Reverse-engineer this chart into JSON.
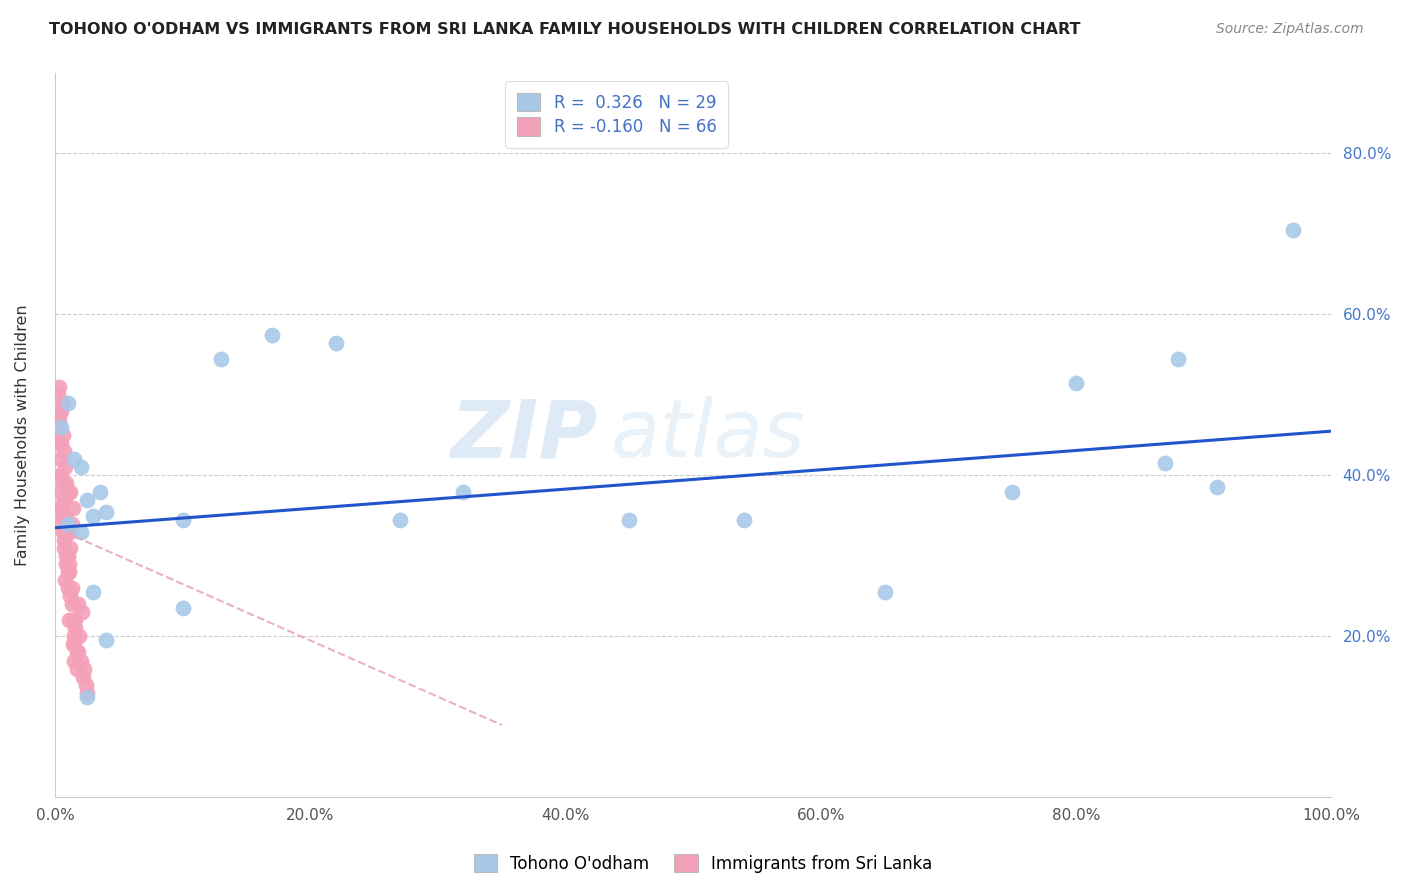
{
  "title": "TOHONO O'ODHAM VS IMMIGRANTS FROM SRI LANKA FAMILY HOUSEHOLDS WITH CHILDREN CORRELATION CHART",
  "source": "Source: ZipAtlas.com",
  "ylabel": "Family Households with Children",
  "watermark_part1": "ZIP",
  "watermark_part2": "atlas",
  "xlim": [
    0.0,
    1.0
  ],
  "ylim": [
    0.0,
    0.9
  ],
  "xticks": [
    0.0,
    0.2,
    0.4,
    0.6,
    0.8,
    1.0
  ],
  "yticks": [
    0.2,
    0.4,
    0.6,
    0.8
  ],
  "xticklabels": [
    "0.0%",
    "20.0%",
    "40.0%",
    "60.0%",
    "80.0%",
    "100.0%"
  ],
  "yticklabels": [
    "20.0%",
    "40.0%",
    "60.0%",
    "80.0%"
  ],
  "blue_color": "#a8c8e8",
  "pink_color": "#f4a0b8",
  "blue_line_color": "#2255cc",
  "pink_line_color": "#e8a0b8",
  "blue_R": 0.326,
  "blue_N": 29,
  "pink_R": -0.16,
  "pink_N": 66,
  "blue_scatter_x": [
    0.005,
    0.01,
    0.015,
    0.02,
    0.025,
    0.03,
    0.035,
    0.04,
    0.02,
    0.01,
    0.13,
    0.17,
    0.22,
    0.1,
    0.54,
    0.65,
    0.75,
    0.87,
    0.91,
    0.97,
    0.88,
    0.8,
    0.03,
    0.04,
    0.27,
    0.32,
    0.025,
    0.1,
    0.45
  ],
  "blue_scatter_y": [
    0.46,
    0.49,
    0.42,
    0.41,
    0.37,
    0.35,
    0.38,
    0.355,
    0.33,
    0.34,
    0.545,
    0.575,
    0.565,
    0.345,
    0.345,
    0.255,
    0.38,
    0.415,
    0.385,
    0.705,
    0.545,
    0.515,
    0.255,
    0.195,
    0.345,
    0.38,
    0.125,
    0.235,
    0.345
  ],
  "pink_scatter_x": [
    0.002,
    0.003,
    0.003,
    0.004,
    0.004,
    0.005,
    0.005,
    0.005,
    0.006,
    0.006,
    0.006,
    0.007,
    0.007,
    0.007,
    0.008,
    0.008,
    0.009,
    0.009,
    0.01,
    0.01,
    0.011,
    0.012,
    0.012,
    0.013,
    0.014,
    0.015,
    0.016,
    0.017,
    0.018,
    0.019,
    0.02,
    0.021,
    0.022,
    0.023,
    0.024,
    0.025,
    0.003,
    0.004,
    0.005,
    0.006,
    0.007,
    0.008,
    0.009,
    0.01,
    0.011,
    0.012,
    0.013,
    0.014,
    0.015,
    0.002,
    0.003,
    0.004,
    0.005,
    0.006,
    0.007,
    0.008,
    0.009,
    0.01,
    0.011,
    0.012,
    0.013,
    0.014,
    0.015,
    0.016,
    0.017,
    0.018
  ],
  "pink_scatter_y": [
    0.46,
    0.47,
    0.44,
    0.42,
    0.4,
    0.38,
    0.36,
    0.34,
    0.49,
    0.35,
    0.33,
    0.43,
    0.37,
    0.32,
    0.41,
    0.35,
    0.29,
    0.39,
    0.3,
    0.38,
    0.28,
    0.25,
    0.33,
    0.26,
    0.22,
    0.19,
    0.21,
    0.18,
    0.24,
    0.2,
    0.17,
    0.23,
    0.15,
    0.16,
    0.14,
    0.13,
    0.36,
    0.4,
    0.48,
    0.45,
    0.31,
    0.27,
    0.33,
    0.28,
    0.22,
    0.38,
    0.24,
    0.19,
    0.17,
    0.5,
    0.51,
    0.48,
    0.44,
    0.39,
    0.37,
    0.33,
    0.3,
    0.26,
    0.29,
    0.31,
    0.34,
    0.36,
    0.2,
    0.22,
    0.16,
    0.18
  ]
}
